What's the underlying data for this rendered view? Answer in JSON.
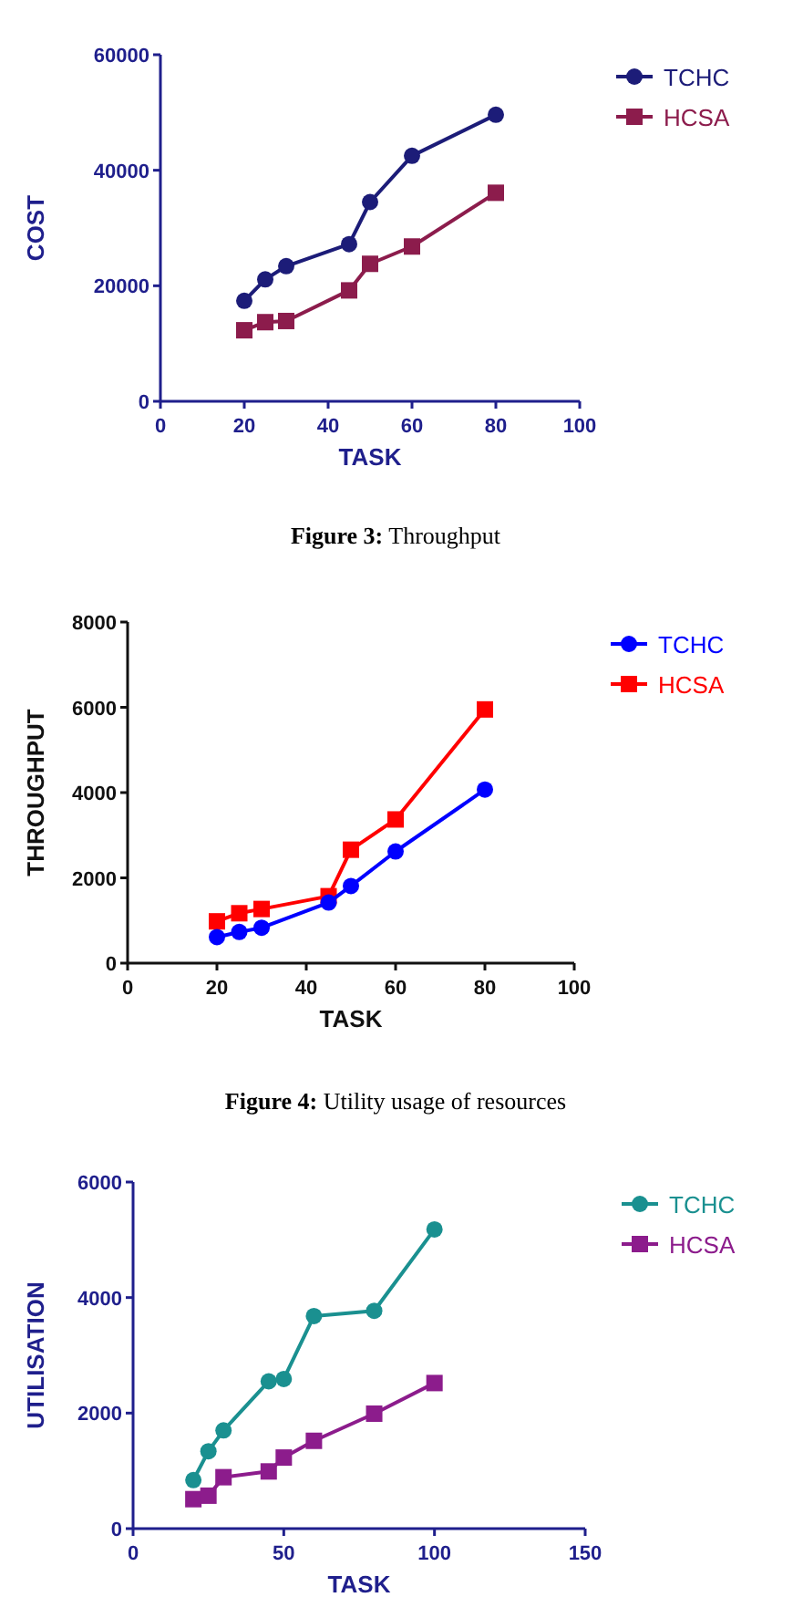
{
  "chart_data": [
    {
      "type": "line",
      "xlabel": "TASK",
      "ylabel": "COST",
      "xlim": [
        0,
        100
      ],
      "xticks": [
        0,
        20,
        40,
        60,
        80,
        100
      ],
      "ylim": [
        0,
        60000
      ],
      "yticks": [
        0,
        20000,
        40000,
        60000
      ],
      "legend": "right",
      "x": [
        20,
        25,
        30,
        45,
        50,
        60,
        80
      ],
      "series": [
        {
          "name": "TCHC",
          "color": "#1c1c78",
          "marker": "circle",
          "values": [
            17400,
            21100,
            23400,
            27200,
            34500,
            42500,
            49600
          ]
        },
        {
          "name": "HCSA",
          "color": "#8c1c4c",
          "marker": "square",
          "values": [
            12300,
            13700,
            13900,
            19200,
            23800,
            26800,
            36100
          ]
        }
      ]
    },
    {
      "type": "line",
      "title": "Figure 3: Throughput",
      "xlabel": "TASK",
      "ylabel": "THROUGHPUT",
      "xlim": [
        0,
        100
      ],
      "xticks": [
        0,
        20,
        40,
        60,
        80,
        100
      ],
      "ylim": [
        0,
        8000
      ],
      "yticks": [
        0,
        2000,
        4000,
        6000,
        8000
      ],
      "legend": "right",
      "x": [
        20,
        25,
        30,
        45,
        50,
        60,
        80
      ],
      "series": [
        {
          "name": "TCHC",
          "color": "#0000ff",
          "marker": "circle",
          "values": [
            610,
            730,
            830,
            1420,
            1810,
            2620,
            4070
          ]
        },
        {
          "name": "HCSA",
          "color": "#ff0000",
          "marker": "square",
          "values": [
            980,
            1170,
            1270,
            1570,
            2660,
            3370,
            5950
          ]
        }
      ]
    },
    {
      "type": "line",
      "title": "Figure 4: Utility usage of resources",
      "xlabel": "TASK",
      "ylabel": "UTILISATION",
      "xlim": [
        0,
        150
      ],
      "xticks": [
        0,
        50,
        100,
        150
      ],
      "ylim": [
        0,
        6000
      ],
      "yticks": [
        0,
        2000,
        4000,
        6000
      ],
      "legend": "right",
      "x": [
        20,
        25,
        30,
        45,
        50,
        60,
        80,
        100
      ],
      "series": [
        {
          "name": "TCHC",
          "color": "#1a9090",
          "marker": "circle",
          "values": [
            840,
            1340,
            1700,
            2550,
            2590,
            3680,
            3770,
            5180
          ]
        },
        {
          "name": "HCSA",
          "color": "#8c1c8c",
          "marker": "square",
          "values": [
            510,
            570,
            890,
            990,
            1230,
            1520,
            1990,
            2520
          ]
        }
      ]
    }
  ]
}
